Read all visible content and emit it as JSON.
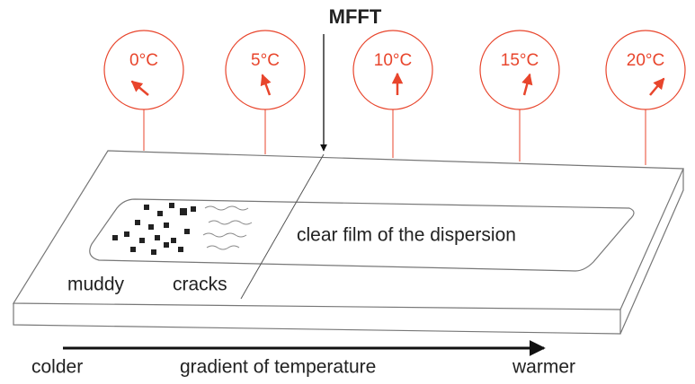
{
  "title": "MFFT",
  "gauges": [
    "0°C",
    "5°C",
    "10°C",
    "15°C",
    "20°C"
  ],
  "film": {
    "muddy": "muddy",
    "cracks": "cracks",
    "clear": "clear film of the dispersion"
  },
  "axis": {
    "left": "colder",
    "middle": "gradient of temperature",
    "right": "warmer"
  }
}
